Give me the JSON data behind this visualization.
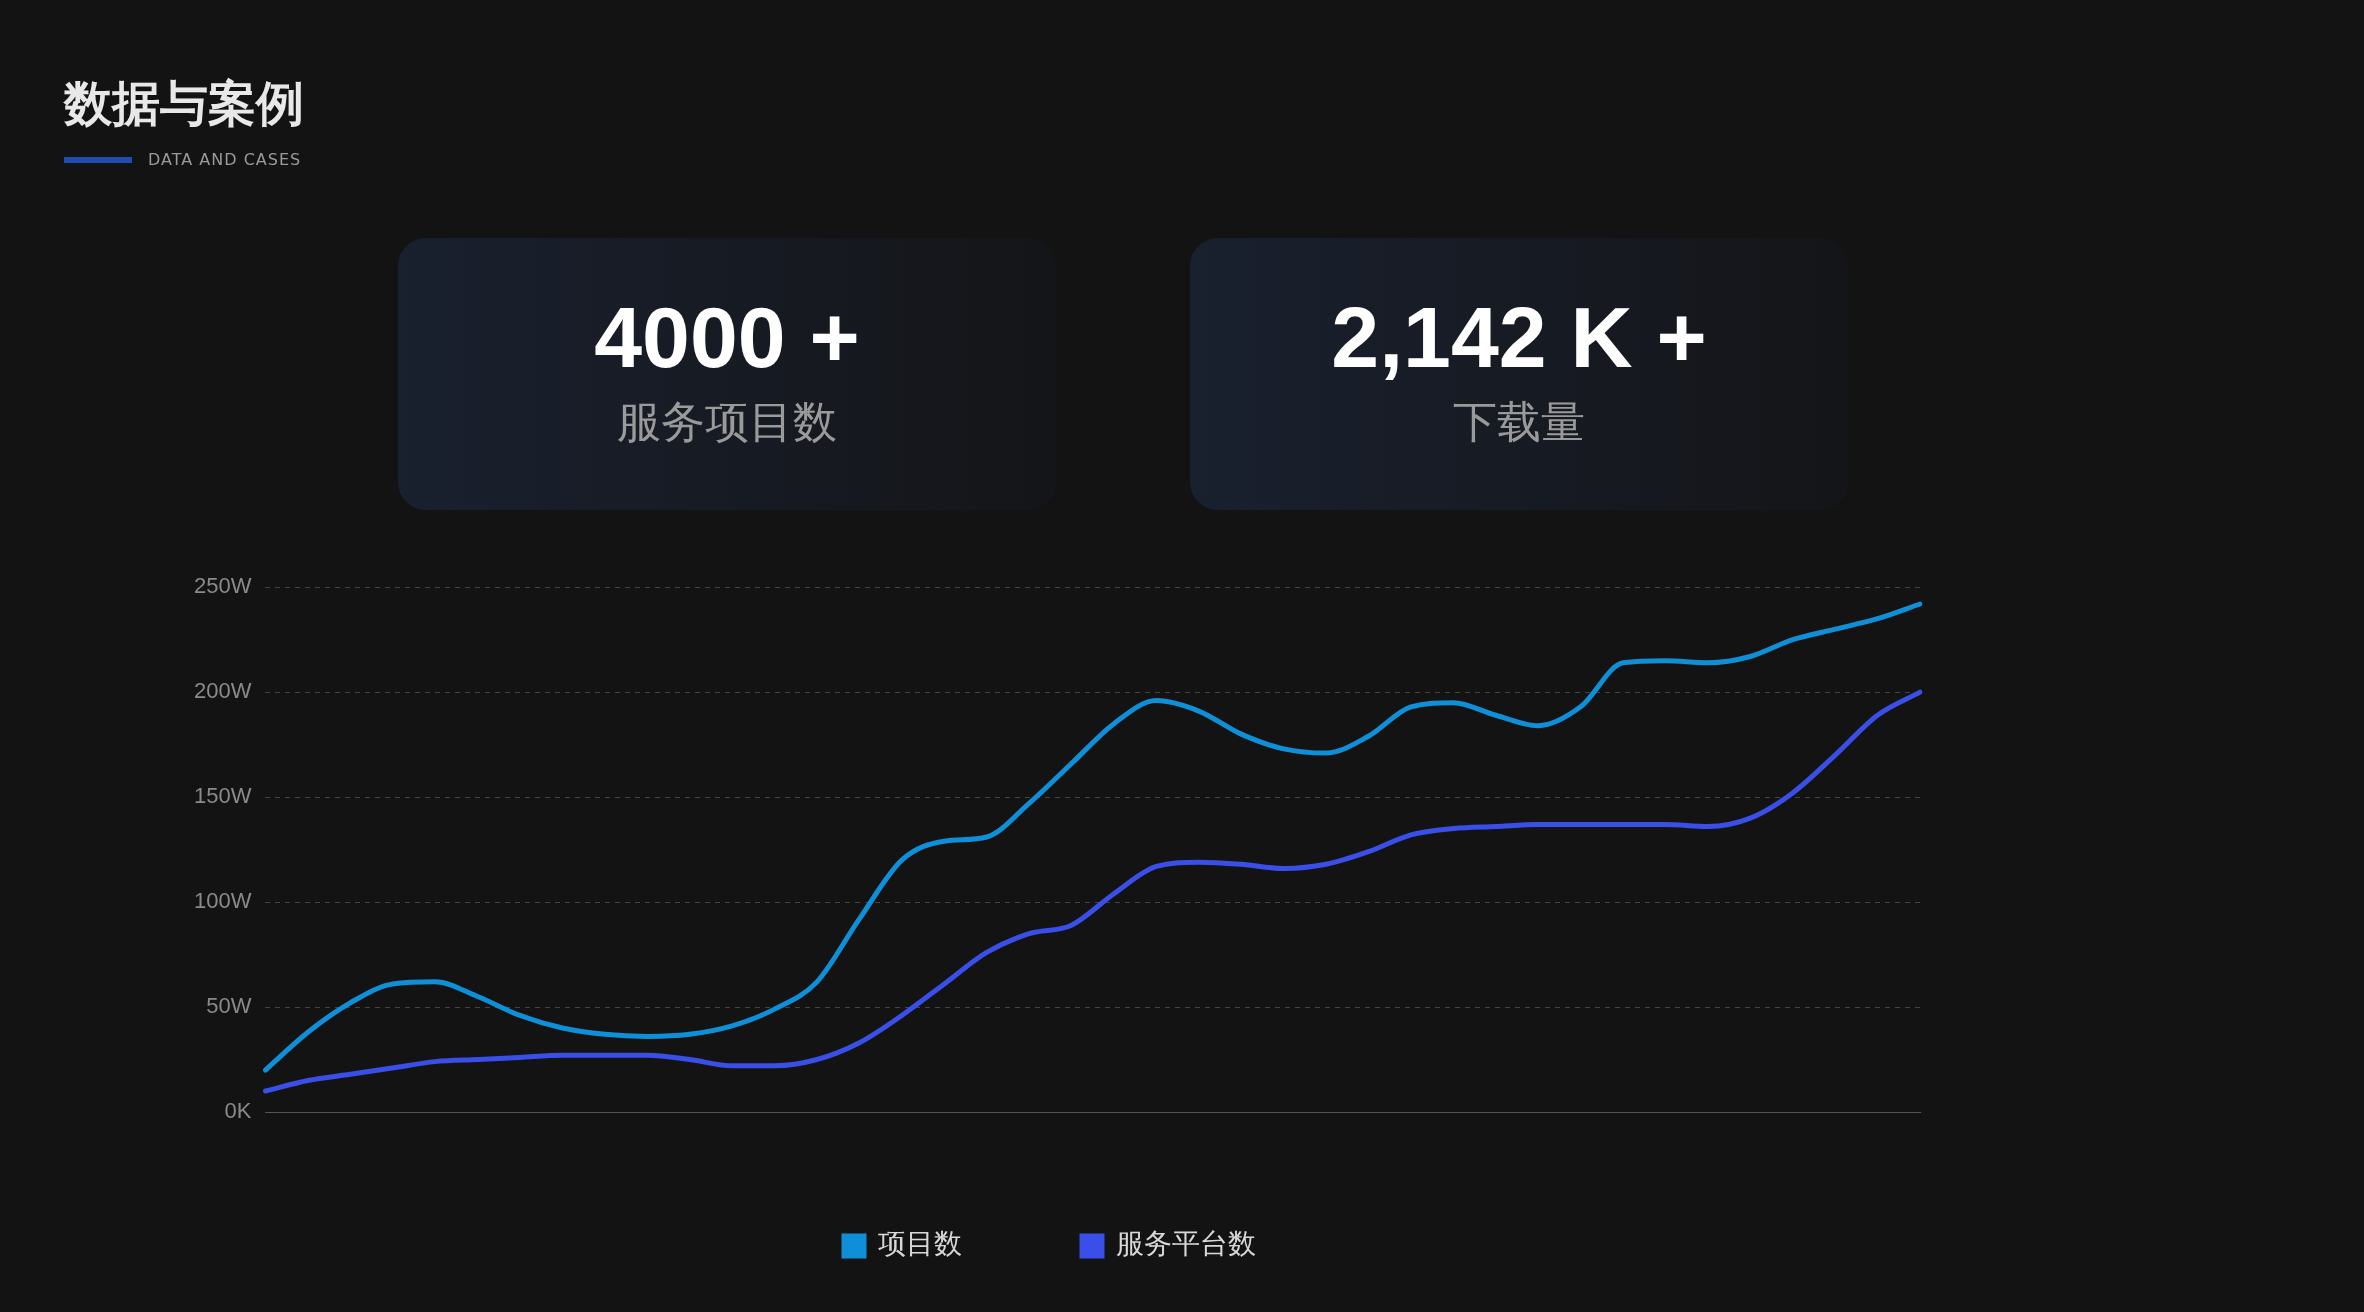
{
  "chart_data": {
    "type": "line",
    "title": "数据与案例",
    "subtitle": "DATA AND CASES",
    "annotations": [
      "4000 +",
      "服务项目数",
      "2,142 K +",
      "下载量"
    ],
    "categories": [
      null,
      null,
      null,
      null,
      null,
      null,
      null,
      null,
      null,
      null,
      null,
      null,
      null,
      null,
      null,
      null,
      null,
      null,
      null,
      null,
      null,
      null,
      null,
      null,
      null,
      null,
      null,
      null,
      null,
      null,
      null,
      null,
      null,
      null,
      null,
      null,
      null,
      null,
      null,
      null
    ],
    "series": [
      {
        "name": "项目数",
        "color": "#0f8fd8",
        "values": [
          20,
          38,
          52,
          61,
          62,
          55,
          46,
          40,
          37,
          36,
          37,
          41,
          49,
          62,
          92,
          120,
          129,
          131,
          147,
          166,
          185,
          196,
          191,
          180,
          173,
          171,
          179,
          193,
          195,
          189,
          184,
          193,
          214,
          215,
          214,
          217,
          225,
          230,
          235,
          242
        ]
      },
      {
        "name": "服务平台数",
        "color": "#3a4ee8",
        "values": [
          10,
          15,
          18,
          21,
          24,
          25,
          26,
          27,
          27,
          27,
          25,
          22,
          22,
          25,
          33,
          46,
          61,
          76,
          85,
          89,
          104,
          117,
          119,
          118,
          116,
          118,
          124,
          132,
          135,
          136,
          137,
          137,
          137,
          137,
          136,
          140,
          152,
          170,
          189,
          200
        ]
      }
    ],
    "ylim": [
      0,
      250
    ],
    "yticks": [
      {
        "value": 0,
        "label": "0K"
      },
      {
        "value": 50,
        "label": "50W"
      },
      {
        "value": 100,
        "label": "100W"
      },
      {
        "value": 150,
        "label": "150W"
      },
      {
        "value": 200,
        "label": "200W"
      },
      {
        "value": 250,
        "label": "250W"
      }
    ],
    "grid": "y",
    "legend": "bottom",
    "marker": "none",
    "line_style": "solid",
    "tick_labels": "y"
  }
}
